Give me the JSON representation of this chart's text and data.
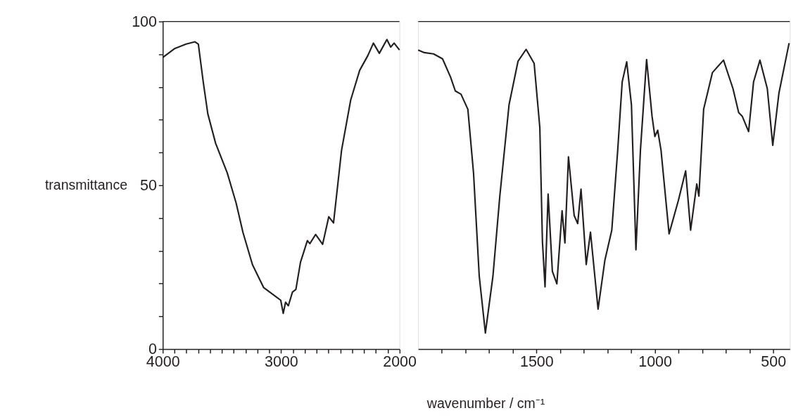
{
  "chart_data": [
    {
      "type": "line",
      "ylabel": "transmittance",
      "x": [
        4000,
        3901,
        3803,
        3727,
        3699,
        3658,
        3619,
        3553,
        3455,
        3380,
        3322,
        3242,
        3148,
        3032,
        3003,
        2982,
        2962,
        2939,
        2904,
        2875,
        2836,
        2778,
        2757,
        2708,
        2649,
        2597,
        2557,
        2489,
        2412,
        2336,
        2267,
        2220,
        2170,
        2106,
        2074,
        2045,
        2000
      ],
      "series": [
        {
          "color": "#231f20",
          "values": [
            89,
            91.7,
            93.1,
            93.8,
            93.1,
            81.6,
            71.8,
            62.8,
            53.8,
            44.6,
            35.6,
            25.8,
            18.8,
            15.7,
            14.9,
            10.9,
            14.3,
            13.2,
            17.4,
            18.2,
            26.5,
            33.1,
            32.2,
            35,
            32,
            40.4,
            38.5,
            60.7,
            76,
            85.1,
            89.6,
            93.4,
            90.3,
            94.5,
            92.2,
            93.4,
            91.3
          ]
        }
      ],
      "xlim": [
        4000,
        2000
      ],
      "xticks": [
        4000,
        {
          "value": 3900,
          "label": null
        },
        {
          "value": 3800,
          "label": null
        },
        {
          "value": 3700,
          "label": null
        },
        {
          "value": 3600,
          "label": null
        },
        {
          "value": 3500,
          "label": null
        },
        {
          "value": 3400,
          "label": null
        },
        {
          "value": 3300,
          "label": null
        },
        {
          "value": 3200,
          "label": null
        },
        {
          "value": 3100,
          "label": null
        },
        3000,
        {
          "value": 2900,
          "label": null
        },
        {
          "value": 2800,
          "label": null
        },
        {
          "value": 2700,
          "label": null
        },
        {
          "value": 2600,
          "label": null
        },
        {
          "value": 2500,
          "label": null
        },
        {
          "value": 2400,
          "label": null
        },
        {
          "value": 2300,
          "label": null
        },
        {
          "value": 2200,
          "label": null
        },
        {
          "value": 2100,
          "label": null
        },
        2000
      ],
      "ylim": [
        0,
        100
      ],
      "yticks": [
        0,
        {
          "value": 10,
          "label": null
        },
        {
          "value": 20,
          "label": null
        },
        {
          "value": 30,
          "label": null
        },
        {
          "value": 40,
          "label": null
        },
        50,
        {
          "value": 60,
          "label": null
        },
        {
          "value": 70,
          "label": null
        },
        {
          "value": 80,
          "label": null
        },
        {
          "value": 90,
          "label": null
        },
        100
      ],
      "grid": false,
      "marker": "none",
      "line_style": "solid"
    },
    {
      "type": "line",
      "xlabel": "wavenumber / cm⁻¹",
      "x": [
        2000,
        1974,
        1935,
        1897,
        1863,
        1843,
        1819,
        1790,
        1766,
        1742,
        1716,
        1684,
        1655,
        1616,
        1578,
        1544,
        1510,
        1486,
        1475,
        1464,
        1451,
        1433,
        1414,
        1392,
        1380,
        1365,
        1341,
        1326,
        1312,
        1290,
        1272,
        1240,
        1211,
        1182,
        1157,
        1138,
        1119,
        1099,
        1080,
        1061,
        1035,
        1012,
        1000,
        988,
        974,
        940,
        901,
        870,
        849,
        823,
        814,
        794,
        757,
        710,
        670,
        646,
        631,
        604,
        583,
        556,
        525,
        502,
        476,
        433
      ],
      "series": [
        {
          "color": "#231f20",
          "values": [
            91.3,
            90.5,
            90.1,
            88.6,
            83,
            78.8,
            77.8,
            73.2,
            53.7,
            22.3,
            4.9,
            22.3,
            46.7,
            74.6,
            87.9,
            91.5,
            87.2,
            67.6,
            32.8,
            19,
            47.3,
            23.7,
            19.9,
            42.2,
            32.4,
            58.7,
            40.8,
            38.3,
            48.8,
            25.8,
            35.7,
            12.2,
            27.2,
            36.3,
            60.7,
            81.6,
            87.7,
            74.6,
            30.3,
            60.7,
            88.4,
            71.1,
            64.9,
            66.8,
            60.7,
            35.2,
            45.3,
            54.4,
            36.3,
            50.4,
            46.7,
            73.2,
            84.4,
            88.2,
            79.5,
            72.2,
            71.1,
            66.4,
            81.6,
            88.2,
            79.5,
            62.2,
            78.1,
            93.4
          ]
        }
      ],
      "xlim": [
        2000,
        430
      ],
      "xticks": [
        {
          "value": 1900,
          "label": null
        },
        {
          "value": 1800,
          "label": null
        },
        {
          "value": 1700,
          "label": null
        },
        {
          "value": 1600,
          "label": null
        },
        1500,
        {
          "value": 1400,
          "label": null
        },
        {
          "value": 1300,
          "label": null
        },
        {
          "value": 1200,
          "label": null
        },
        {
          "value": 1100,
          "label": null
        },
        1000,
        {
          "value": 900,
          "label": null
        },
        {
          "value": 800,
          "label": null
        },
        {
          "value": 700,
          "label": null
        },
        {
          "value": 600,
          "label": null
        },
        500
      ],
      "ylim": [
        0,
        100
      ],
      "tick_labels": "x",
      "grid": false,
      "marker": "none",
      "line_style": "solid"
    }
  ]
}
